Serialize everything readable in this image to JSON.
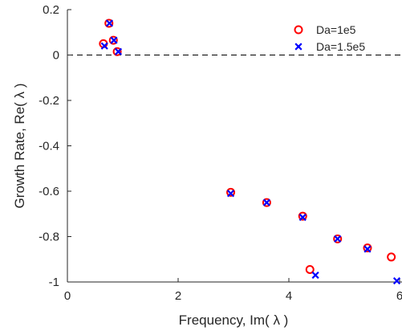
{
  "chart_data": {
    "type": "scatter",
    "xlabel": "Frequency, Im( λ )",
    "ylabel": "Growth Rate, Re( λ )",
    "xlim": [
      0,
      6
    ],
    "ylim": [
      -1,
      0.2
    ],
    "xticks": [
      0,
      2,
      4,
      6
    ],
    "yticks": [
      -1,
      -0.8,
      -0.6,
      -0.4,
      -0.2,
      0,
      0.2
    ],
    "xtick_labels": [
      "0",
      "2",
      "4",
      "6"
    ],
    "ytick_labels": [
      "-1",
      "-0.8",
      "-0.6",
      "-0.4",
      "-0.2",
      "0",
      "0.2"
    ],
    "grid": false,
    "legend_position": "top-right",
    "reference_line": {
      "y": 0,
      "style": "dashed",
      "color": "#000000"
    },
    "series": [
      {
        "name": "Da=1e5",
        "marker": "circle",
        "color": "#ff0000",
        "points": [
          [
            0.65,
            0.05
          ],
          [
            0.75,
            0.14
          ],
          [
            0.83,
            0.065
          ],
          [
            0.9,
            0.015
          ],
          [
            2.95,
            -0.605
          ],
          [
            3.6,
            -0.65
          ],
          [
            4.25,
            -0.71
          ],
          [
            4.88,
            -0.81
          ],
          [
            5.42,
            -0.85
          ],
          [
            5.85,
            -0.89
          ],
          [
            4.38,
            -0.945
          ]
        ]
      },
      {
        "name": "Da=1.5e5",
        "marker": "x",
        "color": "#0000ff",
        "points": [
          [
            0.67,
            0.04
          ],
          [
            0.76,
            0.14
          ],
          [
            0.84,
            0.065
          ],
          [
            0.92,
            0.015
          ],
          [
            2.95,
            -0.61
          ],
          [
            3.6,
            -0.65
          ],
          [
            4.25,
            -0.715
          ],
          [
            4.88,
            -0.81
          ],
          [
            5.42,
            -0.855
          ],
          [
            4.48,
            -0.97
          ],
          [
            5.95,
            -0.995
          ]
        ]
      }
    ]
  }
}
